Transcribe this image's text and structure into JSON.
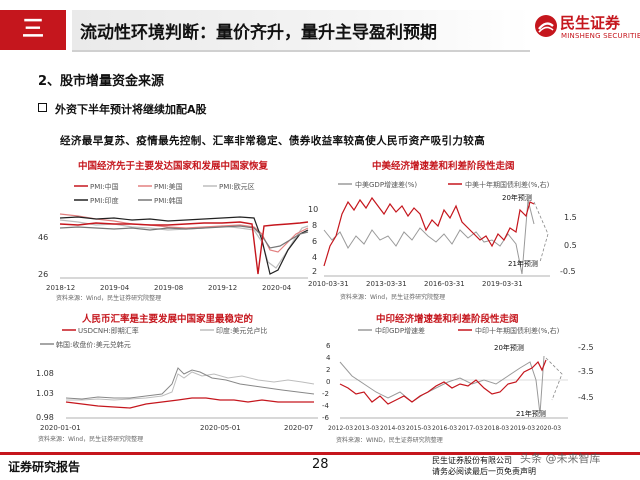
{
  "header": {
    "section_number": "三",
    "title": "流动性环境判断：量价齐升，量升主导盈利预期",
    "logo_cn": "民生证券",
    "logo_en": "MINSHENG SECURITIES"
  },
  "heading": "2、股市增量资金来源",
  "bullet": "外资下半年预计将继续加配A股",
  "subtext": "经济最早复苏、疫情最先控制、汇率非常稳定、债券收益率较高使人民币资产吸引力较高",
  "charts": {
    "c1": {
      "title": "中国经济先于主要发达国家和发展中国家恢复",
      "legend": [
        "PMI:中国",
        "PMI:美国",
        "PMI:欧元区",
        "PMI:印度",
        "PMI:韩国"
      ],
      "y_ticks": [
        "46",
        "26"
      ],
      "x_ticks": [
        "2018-12",
        "2019-04",
        "2019-08",
        "2019-12",
        "2020-04"
      ],
      "source": "资料来源：Wind，民生证券研究院整理"
    },
    "c2": {
      "title": "中美经济增速差和利差阶段性走阔",
      "legend": [
        "中美GDP增速差(%)",
        "中美十年期国债利差(%,右)"
      ],
      "y_left": [
        "10",
        "8",
        "6",
        "4",
        "2"
      ],
      "y_right": [
        "1.5",
        "0.5",
        "-0.5"
      ],
      "x_ticks": [
        "2010-03-31",
        "2013-03-31",
        "2016-03-31",
        "2019-03-31"
      ],
      "ann_20": "20年预测",
      "ann_21": "21年预测",
      "source": "资料来源：Wind，民生证券研究院整理"
    },
    "c3": {
      "title": "人民币汇率是主要发展中国家里最稳定的",
      "legend": [
        "USDCNH:即期汇率",
        "印度:美元兑卢比",
        "韩国:收盘价:美元兑韩元"
      ],
      "y_ticks": [
        "1.08",
        "1.03",
        "0.98"
      ],
      "x_ticks": [
        "2020-01-01",
        "2020-05-01",
        "2020-07"
      ],
      "source": "资料来源：Wind，民生证券研究院整理"
    },
    "c4": {
      "title": "中印经济增速差和利差阶段性走阔",
      "legend": [
        "中印GDP增速差",
        "中印十年期国债利差(%,右)"
      ],
      "y_left": [
        "6",
        "4",
        "2",
        "0",
        "-2",
        "-4",
        "-6"
      ],
      "y_right": [
        "-2.5",
        "-3.5",
        "-4.5"
      ],
      "x_ticks": [
        "2012-03",
        "2013-03",
        "2014-03",
        "2015-03",
        "2016-03",
        "2017-03",
        "2018-03",
        "2019-03",
        "2020-03"
      ],
      "ann_20": "20年预测",
      "ann_21": "21年预测",
      "source": "资料来源：WIND，民生证券研究院整理"
    }
  },
  "footer": {
    "left": "证券研究报告",
    "page": "28",
    "right1": "民生证券股份有限公司",
    "right2": "请务必阅读最后一页免责声明",
    "watermark": "头条 @未来智库"
  },
  "colors": {
    "brand_red": "#c5161d",
    "gray_line": "#9a9a9a"
  }
}
